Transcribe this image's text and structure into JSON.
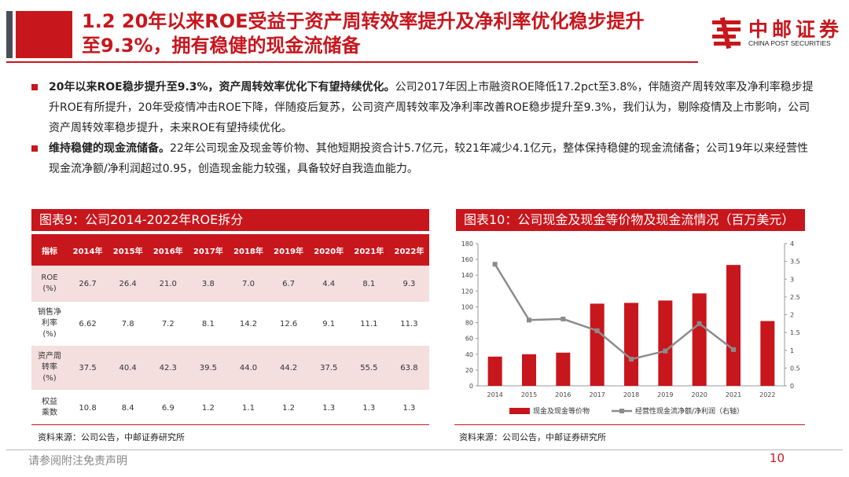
{
  "header": {
    "title_line1": "1.2 20年以来ROE受益于资产周转效率提升及净利率优化稳步提升",
    "title_line2": "至9.3%，拥有稳健的现金流储备",
    "logo_cn": "中邮证券",
    "logo_en": "CHINA POST SECURITIES"
  },
  "bullets": [
    {
      "bold": "20年以来ROE稳步提升至9.3%，资产周转效率优化下有望持续优化。",
      "text": "公司2017年因上市融资ROE降低17.2pct至3.8%，伴随资产周转效率及净利率稳步提升ROE有所提升，20年受疫情冲击ROE下降，伴随疫后复苏，公司资产周转效率及净利率改善ROE稳步提升至9.3%，我们认为，剔除疫情及上市影响，公司资产周转效率稳步提升，未来ROE有望持续优化。"
    },
    {
      "bold": "维持稳健的现金流储备。",
      "text": "22年公司现金及现金等价物、其他短期投资合计5.7亿元，较21年减少4.1亿元，整体保持稳健的现金流储备；公司19年以来经营性现金流净额/净利润超过0.95，创造现金能力较强，具备较好自我造血能力。"
    }
  ],
  "table9": {
    "title": "图表9：公司2014-2022年ROE拆分",
    "header": [
      "指标",
      "2014年",
      "2015年",
      "2016年",
      "2017年",
      "2018年",
      "2019年",
      "2020年",
      "2021年",
      "2022年"
    ],
    "rows": [
      {
        "label": [
          "ROE",
          "(%)"
        ],
        "values": [
          "26.7",
          "26.4",
          "21.0",
          "3.8",
          "7.0",
          "6.7",
          "4.4",
          "8.1",
          "9.3"
        ]
      },
      {
        "label": [
          "销售净",
          "利率",
          "(%)"
        ],
        "values": [
          "6.62",
          "7.8",
          "7.2",
          "8.1",
          "14.2",
          "12.6",
          "9.1",
          "11.1",
          "11.3"
        ]
      },
      {
        "label": [
          "资产周",
          "转率",
          "(%)"
        ],
        "values": [
          "37.5",
          "40.4",
          "42.3",
          "39.5",
          "44.0",
          "44.2",
          "37.5",
          "55.5",
          "63.8"
        ]
      },
      {
        "label": [
          "权益",
          "乘数"
        ],
        "values": [
          "10.8",
          "8.4",
          "6.9",
          "1.2",
          "1.1",
          "1.2",
          "1.3",
          "1.3",
          "1.3"
        ]
      }
    ],
    "source": "资料来源：公司公告，中邮证券研究所"
  },
  "chart10": {
    "title": "图表10：公司现金及现金等价物及现金流情况（百万美元）",
    "source": "资料来源：公司公告，中邮证券研究所"
  },
  "chart_data": {
    "type": "bar",
    "categories": [
      "2014",
      "2015",
      "2016",
      "2017",
      "2018",
      "2019",
      "2020",
      "2021",
      "2022"
    ],
    "series": [
      {
        "name": "现金及现金等价物",
        "type": "bar",
        "axis": "left",
        "color": "#c8161d",
        "values": [
          37,
          40,
          42,
          104,
          105,
          108,
          117,
          153,
          82
        ]
      },
      {
        "name": "经营性现金流净额/净利润（右轴）",
        "type": "line",
        "axis": "right",
        "color": "#8c8c8c",
        "values": [
          3.42,
          1.85,
          1.88,
          1.55,
          0.75,
          0.98,
          1.75,
          1.02,
          null
        ]
      }
    ],
    "ylim": [
      0,
      180
    ],
    "yticks": [
      "0",
      "20",
      "40",
      "60",
      "80",
      "100",
      "120",
      "140",
      "160",
      "180"
    ],
    "y2lim": [
      0,
      4
    ],
    "y2ticks": [
      "0",
      "0.5",
      "1",
      "1.5",
      "2",
      "2.5",
      "3",
      "3.5",
      "4"
    ],
    "legend_position": "bottom"
  },
  "footer": {
    "disclaimer": "请参阅附注免责声明",
    "page": "10"
  }
}
